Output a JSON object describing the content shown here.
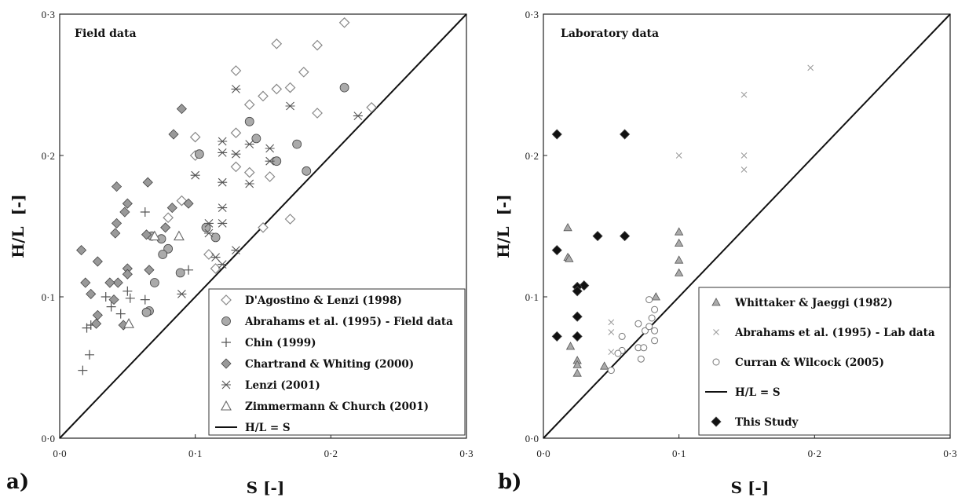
{
  "chart_data": [
    {
      "id": "a",
      "type": "scatter",
      "panel_label": "a)",
      "title": "Field data",
      "xlabel": "S [-]",
      "ylabel": "H/L  [-]",
      "xlim": [
        0,
        0.3
      ],
      "ylim": [
        0,
        0.3
      ],
      "xticks": [
        "0·0",
        "0·1",
        "0·2",
        "0·3"
      ],
      "yticks": [
        "0·0",
        "0·1",
        "0·2",
        "0·3"
      ],
      "grid": false,
      "legend_position": "bottom-right",
      "reference_line": {
        "name": "H/L = S",
        "x": [
          0,
          0.3
        ],
        "y": [
          0,
          0.3
        ],
        "color": "#111111"
      },
      "series": [
        {
          "name": "D'Agostino & Lenzi (1998)",
          "marker": "diamond-open",
          "color": "#888888",
          "points": [
            [
              0.21,
              0.294
            ],
            [
              0.16,
              0.279
            ],
            [
              0.19,
              0.278
            ],
            [
              0.13,
              0.26
            ],
            [
              0.18,
              0.259
            ],
            [
              0.16,
              0.247
            ],
            [
              0.17,
              0.248
            ],
            [
              0.15,
              0.242
            ],
            [
              0.14,
              0.236
            ],
            [
              0.23,
              0.234
            ],
            [
              0.19,
              0.23
            ],
            [
              0.13,
              0.216
            ],
            [
              0.1,
              0.213
            ],
            [
              0.1,
              0.2
            ],
            [
              0.14,
              0.188
            ],
            [
              0.155,
              0.185
            ],
            [
              0.13,
              0.192
            ],
            [
              0.09,
              0.168
            ],
            [
              0.17,
              0.155
            ],
            [
              0.08,
              0.156
            ],
            [
              0.15,
              0.149
            ],
            [
              0.11,
              0.13
            ],
            [
              0.115,
              0.12
            ]
          ]
        },
        {
          "name": "Abrahams et al. (1995) - Field data",
          "marker": "circle-filled",
          "color": "#aaaaaa",
          "points": [
            [
              0.21,
              0.248
            ],
            [
              0.14,
              0.224
            ],
            [
              0.145,
              0.212
            ],
            [
              0.103,
              0.201
            ],
            [
              0.175,
              0.208
            ],
            [
              0.16,
              0.196
            ],
            [
              0.182,
              0.189
            ],
            [
              0.068,
              0.143
            ],
            [
              0.075,
              0.141
            ],
            [
              0.08,
              0.134
            ],
            [
              0.076,
              0.13
            ],
            [
              0.115,
              0.142
            ],
            [
              0.108,
              0.149
            ],
            [
              0.089,
              0.117
            ],
            [
              0.07,
              0.11
            ],
            [
              0.066,
              0.09
            ],
            [
              0.064,
              0.089
            ]
          ]
        },
        {
          "name": "Chin (1999)",
          "marker": "plus",
          "color": "#555555",
          "points": [
            [
              0.063,
              0.16
            ],
            [
              0.095,
              0.119
            ],
            [
              0.063,
              0.098
            ],
            [
              0.05,
              0.104
            ],
            [
              0.052,
              0.099
            ],
            [
              0.034,
              0.1
            ],
            [
              0.038,
              0.093
            ],
            [
              0.045,
              0.088
            ],
            [
              0.02,
              0.078
            ],
            [
              0.023,
              0.08
            ],
            [
              0.022,
              0.059
            ],
            [
              0.017,
              0.048
            ]
          ]
        },
        {
          "name": "Chartrand & Whiting (2000)",
          "marker": "diamond-filled",
          "color": "#999999",
          "points": [
            [
              0.09,
              0.233
            ],
            [
              0.084,
              0.215
            ],
            [
              0.042,
              0.178
            ],
            [
              0.065,
              0.181
            ],
            [
              0.05,
              0.166
            ],
            [
              0.095,
              0.166
            ],
            [
              0.048,
              0.16
            ],
            [
              0.083,
              0.163
            ],
            [
              0.042,
              0.152
            ],
            [
              0.064,
              0.144
            ],
            [
              0.041,
              0.145
            ],
            [
              0.078,
              0.149
            ],
            [
              0.016,
              0.133
            ],
            [
              0.066,
              0.119
            ],
            [
              0.028,
              0.125
            ],
            [
              0.05,
              0.12
            ],
            [
              0.043,
              0.11
            ],
            [
              0.037,
              0.11
            ],
            [
              0.05,
              0.116
            ],
            [
              0.019,
              0.11
            ],
            [
              0.023,
              0.102
            ],
            [
              0.04,
              0.098
            ],
            [
              0.028,
              0.087
            ],
            [
              0.027,
              0.081
            ],
            [
              0.047,
              0.08
            ]
          ]
        },
        {
          "name": "Lenzi (2001)",
          "marker": "asterisk",
          "color": "#555555",
          "points": [
            [
              0.13,
              0.247
            ],
            [
              0.17,
              0.235
            ],
            [
              0.22,
              0.228
            ],
            [
              0.12,
              0.21
            ],
            [
              0.14,
              0.208
            ],
            [
              0.13,
              0.201
            ],
            [
              0.12,
              0.202
            ],
            [
              0.155,
              0.205
            ],
            [
              0.155,
              0.196
            ],
            [
              0.1,
              0.186
            ],
            [
              0.12,
              0.181
            ],
            [
              0.14,
              0.18
            ],
            [
              0.12,
              0.163
            ],
            [
              0.11,
              0.152
            ],
            [
              0.12,
              0.152
            ],
            [
              0.11,
              0.145
            ],
            [
              0.115,
              0.128
            ],
            [
              0.12,
              0.123
            ],
            [
              0.13,
              0.133
            ],
            [
              0.09,
              0.102
            ]
          ]
        },
        {
          "name": "Zimmermann & Church (2001)",
          "marker": "triangle-open",
          "color": "#666666",
          "points": [
            [
              0.07,
              0.143
            ],
            [
              0.088,
              0.143
            ],
            [
              0.051,
              0.081
            ]
          ]
        }
      ]
    },
    {
      "id": "b",
      "type": "scatter",
      "panel_label": "b)",
      "title": "Laboratory data",
      "xlabel": "S [-]",
      "ylabel": "H/L  [-]",
      "xlim": [
        0,
        0.3
      ],
      "ylim": [
        0,
        0.3
      ],
      "xticks": [
        "0·0",
        "0·1",
        "0·2",
        "0·3"
      ],
      "yticks": [
        "0·0",
        "0·1",
        "0·2",
        "0·3"
      ],
      "grid": false,
      "legend_position": "bottom-right",
      "reference_line": {
        "name": "H/L = S",
        "x": [
          0,
          0.3
        ],
        "y": [
          0,
          0.3
        ],
        "color": "#111111"
      },
      "series": [
        {
          "name": "Whittaker & Jaeggi (1982)",
          "marker": "triangle-filled",
          "color": "#aaaaaa",
          "points": [
            [
              0.018,
              0.149
            ],
            [
              0.018,
              0.128
            ],
            [
              0.019,
              0.127
            ],
            [
              0.1,
              0.146
            ],
            [
              0.1,
              0.138
            ],
            [
              0.1,
              0.126
            ],
            [
              0.1,
              0.117
            ],
            [
              0.083,
              0.1
            ],
            [
              0.025,
              0.055
            ],
            [
              0.025,
              0.052
            ],
            [
              0.025,
              0.046
            ],
            [
              0.045,
              0.051
            ],
            [
              0.02,
              0.065
            ]
          ]
        },
        {
          "name": "Abrahams et al. (1995) - Lab data",
          "marker": "x",
          "color": "#999999",
          "points": [
            [
              0.197,
              0.262
            ],
            [
              0.148,
              0.243
            ],
            [
              0.148,
              0.2
            ],
            [
              0.148,
              0.19
            ],
            [
              0.1,
              0.2
            ],
            [
              0.05,
              0.082
            ],
            [
              0.05,
              0.075
            ],
            [
              0.05,
              0.061
            ]
          ]
        },
        {
          "name": "Curran & Wilcock (2005)",
          "marker": "circle-open",
          "color": "#777777",
          "points": [
            [
              0.078,
              0.098
            ],
            [
              0.08,
              0.085
            ],
            [
              0.082,
              0.091
            ],
            [
              0.07,
              0.081
            ],
            [
              0.075,
              0.076
            ],
            [
              0.078,
              0.079
            ],
            [
              0.082,
              0.076
            ],
            [
              0.082,
              0.069
            ],
            [
              0.058,
              0.072
            ],
            [
              0.07,
              0.064
            ],
            [
              0.074,
              0.064
            ],
            [
              0.072,
              0.056
            ],
            [
              0.058,
              0.062
            ],
            [
              0.055,
              0.06
            ],
            [
              0.05,
              0.048
            ]
          ]
        },
        {
          "name": "This Study",
          "marker": "diamond-filled",
          "color": "#111111",
          "points": [
            [
              0.01,
              0.215
            ],
            [
              0.06,
              0.215
            ],
            [
              0.04,
              0.143
            ],
            [
              0.06,
              0.143
            ],
            [
              0.01,
              0.133
            ],
            [
              0.03,
              0.108
            ],
            [
              0.025,
              0.107
            ],
            [
              0.025,
              0.104
            ],
            [
              0.025,
              0.086
            ],
            [
              0.01,
              0.072
            ],
            [
              0.025,
              0.072
            ]
          ]
        }
      ]
    }
  ]
}
